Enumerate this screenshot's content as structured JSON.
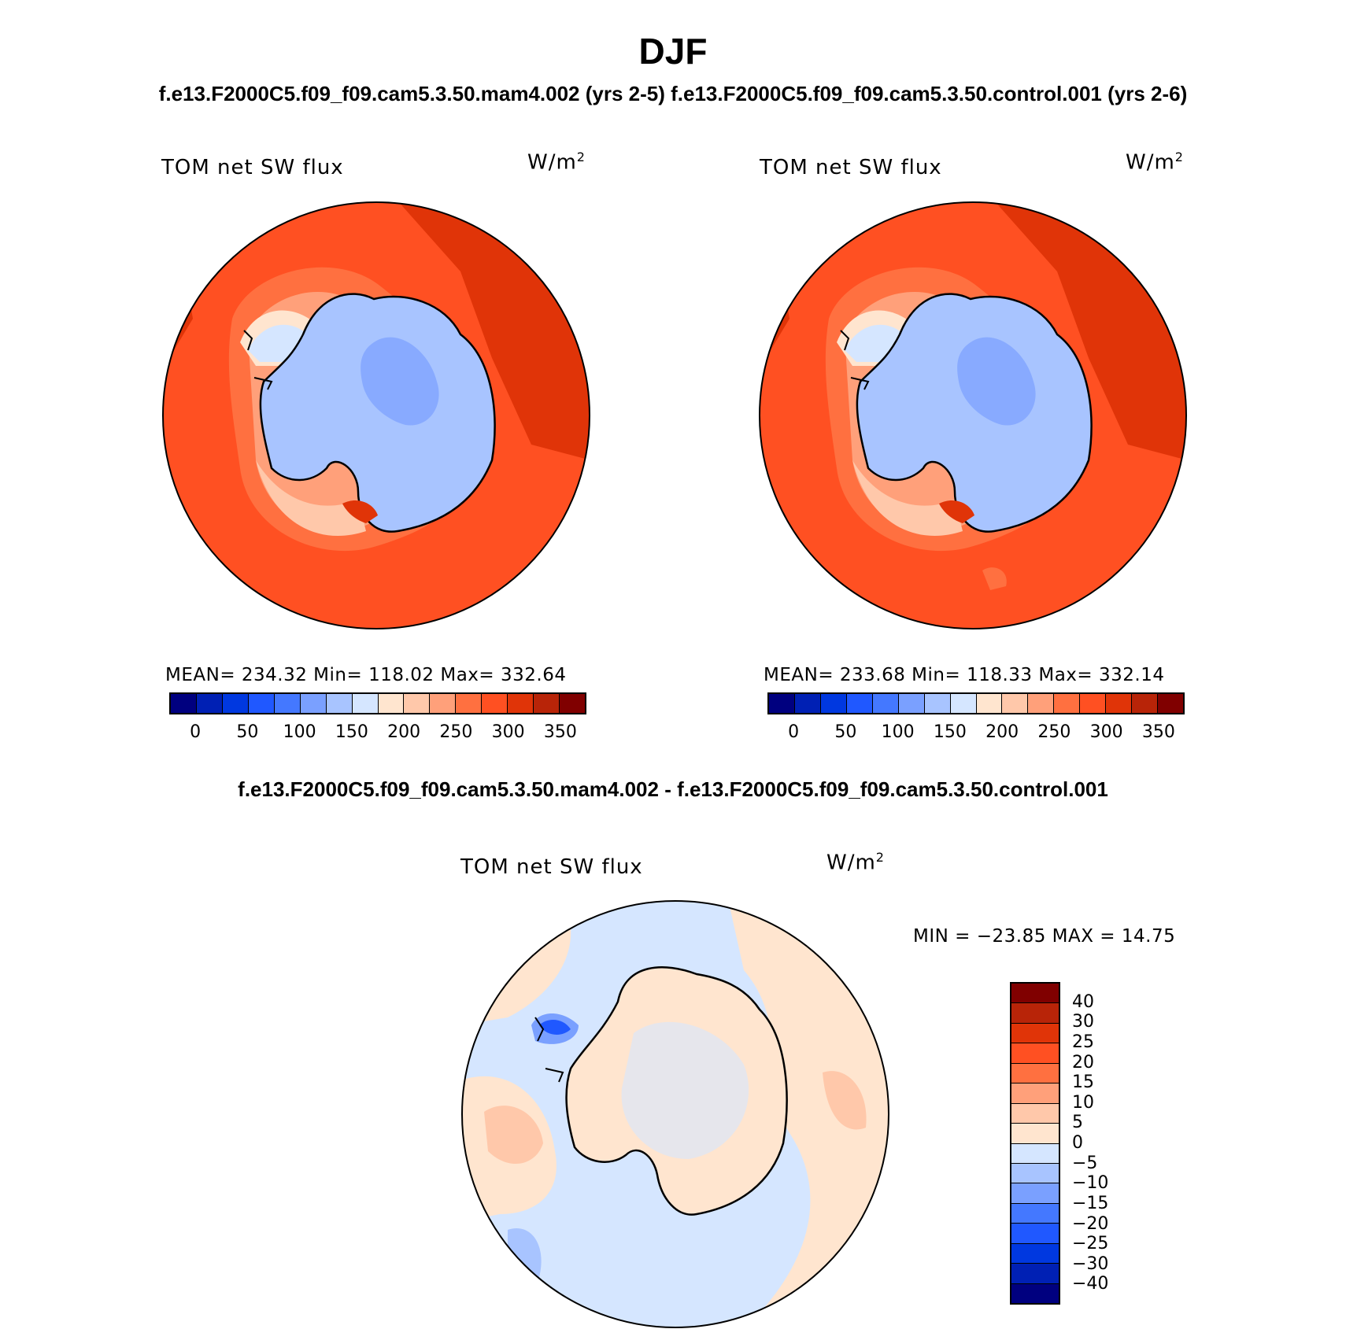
{
  "header": {
    "season": "DJF",
    "cases": "f.e13.F2000C5.f09_f09.cam5.3.50.mam4.002 (yrs 2-5) f.e13.F2000C5.f09_f09.cam5.3.50.control.001 (yrs 2-6)"
  },
  "panels": [
    {
      "variable": "TOM net SW flux",
      "units_base": "W/m",
      "units_exp": "2",
      "stats": "MEAN= 234.32   Min= 118.02   Max= 332.64"
    },
    {
      "variable": "TOM net SW flux",
      "units_base": "W/m",
      "units_exp": "2",
      "stats": "MEAN= 233.68   Min= 118.33   Max= 332.14"
    }
  ],
  "colorbar_main": {
    "colors": [
      "#00007f",
      "#0020b4",
      "#0038e0",
      "#2058ff",
      "#4478ff",
      "#7aa0ff",
      "#a8c4ff",
      "#d5e6ff",
      "#ffe5cf",
      "#ffc8aa",
      "#ffa07a",
      "#ff7040",
      "#ff5022",
      "#e03408",
      "#b82408",
      "#800000"
    ],
    "ticks": [
      "0",
      "50",
      "100",
      "150",
      "200",
      "250",
      "300",
      "350"
    ]
  },
  "difference": {
    "title": "f.e13.F2000C5.f09_f09.cam5.3.50.mam4.002 - f.e13.F2000C5.f09_f09.cam5.3.50.control.001",
    "variable": "TOM net SW flux",
    "units_base": "W/m",
    "units_exp": "2",
    "minmax": "MIN = −23.85 MAX =   14.75",
    "colorbar": {
      "colors": [
        "#800000",
        "#b82408",
        "#e03408",
        "#ff5022",
        "#ff7040",
        "#ffa07a",
        "#ffc8aa",
        "#ffe5cf",
        "#d5e6ff",
        "#a8c4ff",
        "#7aa0ff",
        "#4478ff",
        "#2058ff",
        "#0038e0",
        "#0020b4",
        "#00007f"
      ],
      "labels": [
        "40",
        "30",
        "25",
        "20",
        "15",
        "10",
        "5",
        "0",
        "−5",
        "−10",
        "−15",
        "−20",
        "−25",
        "−30",
        "−40"
      ]
    }
  },
  "colors": {
    "ocean_main": "#ff5022",
    "ocean_warm": "#e03408",
    "ice": "#a8c4ff",
    "ice_dark": "#7aa0ff",
    "diff_pos": "#ffe5cf",
    "diff_neg": "#d5e6ff"
  }
}
